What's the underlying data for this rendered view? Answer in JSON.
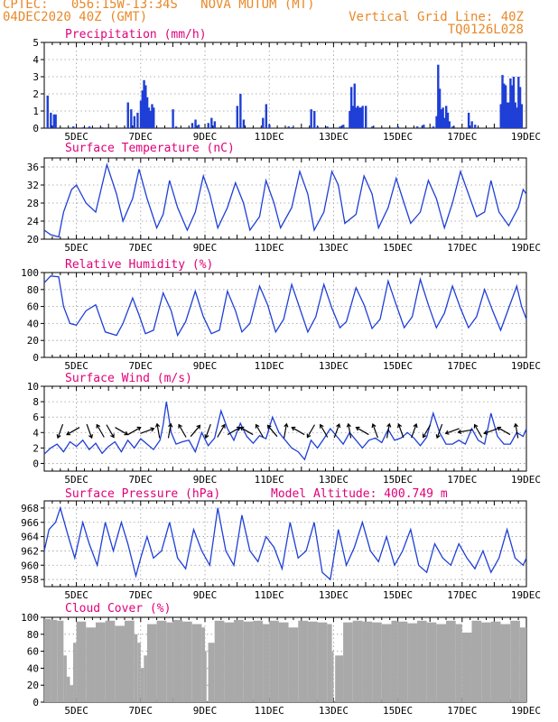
{
  "header": {
    "line1_left": "CPTEC:   056:15W-13:34S   NOVA MUTUM (MT)",
    "line2_left": "04DEC2020 40Z (GMT)",
    "line1_right": "Vertical Grid Line: 40Z",
    "line2_right": "TQ0126L028"
  },
  "colors": {
    "header": "#e8892a",
    "panel_title": "#e0007a",
    "line": "#1f3fd6",
    "bars": "#1f3fd6",
    "cloud": "#a9a9a9",
    "grid": "#9a9a9a"
  },
  "chart_data": [
    {
      "type": "bar",
      "title": "Precipitation (mm/h)",
      "xlim": [
        4.0,
        19.0
      ],
      "ylim": [
        0,
        5
      ],
      "yticks": [
        0,
        1,
        2,
        3,
        4,
        5
      ],
      "xtick_values": [
        5,
        7,
        9,
        11,
        13,
        15,
        17,
        19
      ],
      "xtick_labels": [
        "5DEC",
        "7DEC",
        "9DEC",
        "11DEC",
        "13DEC",
        "15DEC",
        "17DEC",
        "19DEC"
      ],
      "grid": true,
      "x": [
        4.1,
        4.2,
        4.3,
        4.35,
        4.9,
        5.2,
        5.4,
        5.8,
        6.6,
        6.7,
        6.8,
        6.9,
        7.0,
        7.05,
        7.1,
        7.15,
        7.2,
        7.25,
        7.3,
        7.35,
        7.4,
        8.0,
        8.1,
        8.6,
        8.7,
        8.8,
        9.1,
        9.2,
        9.3,
        10.0,
        10.1,
        10.2,
        10.8,
        10.9,
        11.0,
        11.6,
        11.7,
        12.3,
        12.4,
        12.5,
        12.8,
        13.2,
        13.3,
        13.5,
        13.55,
        13.6,
        13.65,
        13.7,
        13.75,
        13.8,
        13.85,
        13.9,
        14.0,
        14.2,
        15.0,
        15.6,
        15.8,
        16.1,
        16.2,
        16.25,
        16.3,
        16.35,
        16.4,
        16.45,
        16.5,
        16.55,
        16.6,
        16.7,
        17.2,
        17.3,
        17.4,
        18.2,
        18.25,
        18.3,
        18.35,
        18.4,
        18.45,
        18.5,
        18.55,
        18.6,
        18.65,
        18.7,
        18.75,
        18.8,
        18.85
      ],
      "values": [
        1.9,
        0.9,
        0.8,
        0.8,
        0.1,
        0.05,
        0.1,
        0.05,
        1.5,
        1.1,
        0.7,
        0.9,
        1.6,
        2.2,
        2.8,
        2.5,
        1.8,
        1.2,
        1.0,
        1.4,
        1.2,
        1.1,
        0.1,
        0.3,
        0.5,
        0.2,
        0.3,
        0.6,
        0.4,
        1.3,
        2.0,
        0.5,
        0.6,
        1.4,
        0.2,
        0.1,
        0.05,
        1.1,
        1.0,
        0.1,
        0.1,
        0.1,
        0.2,
        1.0,
        2.4,
        1.3,
        2.6,
        1.2,
        1.3,
        1.2,
        1.2,
        1.3,
        1.3,
        0.1,
        0.1,
        0.1,
        0.2,
        0.1,
        0.7,
        3.7,
        2.3,
        1.1,
        1.2,
        0.6,
        1.3,
        0.9,
        0.4,
        0.1,
        0.9,
        0.4,
        0.2,
        1.4,
        3.1,
        2.6,
        2.5,
        1.5,
        1.5,
        2.9,
        2.5,
        3.0,
        1.5,
        1.2,
        3.0,
        2.4,
        1.4
      ]
    },
    {
      "type": "line",
      "title": "Surface Temperature (nC)",
      "xlim": [
        4.0,
        19.0
      ],
      "ylim": [
        20,
        38
      ],
      "yticks": [
        20,
        24,
        28,
        32,
        36
      ],
      "xtick_values": [
        5,
        7,
        9,
        11,
        13,
        15,
        17,
        19
      ],
      "xtick_labels": [
        "5DEC",
        "7DEC",
        "9DEC",
        "11DEC",
        "13DEC",
        "15DEC",
        "17DEC",
        "19DEC"
      ],
      "grid": true,
      "x": [
        4.0,
        4.2,
        4.45,
        4.6,
        4.85,
        5.0,
        5.3,
        5.6,
        5.95,
        6.25,
        6.45,
        6.75,
        6.95,
        7.2,
        7.5,
        7.7,
        7.9,
        8.15,
        8.45,
        8.7,
        8.95,
        9.15,
        9.4,
        9.7,
        9.95,
        10.2,
        10.4,
        10.7,
        10.9,
        11.15,
        11.35,
        11.7,
        11.95,
        12.2,
        12.4,
        12.7,
        12.95,
        13.15,
        13.35,
        13.7,
        13.95,
        14.2,
        14.4,
        14.7,
        14.95,
        15.15,
        15.4,
        15.7,
        15.95,
        16.2,
        16.45,
        16.7,
        16.95,
        17.15,
        17.45,
        17.7,
        17.9,
        18.15,
        18.45,
        18.75,
        18.9,
        19.0
      ],
      "values": [
        22,
        21,
        20.5,
        26,
        31,
        32,
        28,
        26,
        36.5,
        30,
        24,
        29,
        35.5,
        29,
        22.5,
        25.5,
        33,
        27,
        22,
        26,
        34,
        30,
        22.5,
        27,
        32.5,
        28,
        22,
        25,
        33,
        28,
        22.5,
        27,
        35,
        30,
        22,
        26,
        35,
        32,
        23.5,
        25.5,
        34,
        30,
        22.5,
        27,
        33.5,
        29,
        23.5,
        26,
        33,
        29,
        22.5,
        28,
        35,
        31,
        25,
        26,
        33,
        26,
        23,
        27,
        31,
        30
      ]
    },
    {
      "type": "line",
      "title": "Relative Humidity (%)",
      "xlim": [
        4.0,
        19.0
      ],
      "ylim": [
        0,
        100
      ],
      "yticks": [
        0,
        20,
        40,
        60,
        80,
        100
      ],
      "xtick_values": [
        5,
        7,
        9,
        11,
        13,
        15,
        17,
        19
      ],
      "xtick_labels": [
        "5DEC",
        "7DEC",
        "9DEC",
        "11DEC",
        "13DEC",
        "15DEC",
        "17DEC",
        "19DEC"
      ],
      "grid": true,
      "x": [
        4.0,
        4.2,
        4.45,
        4.6,
        4.8,
        5.0,
        5.3,
        5.6,
        5.9,
        6.25,
        6.45,
        6.75,
        6.95,
        7.15,
        7.4,
        7.7,
        7.95,
        8.15,
        8.4,
        8.7,
        8.95,
        9.2,
        9.45,
        9.7,
        9.95,
        10.15,
        10.4,
        10.7,
        10.95,
        11.2,
        11.45,
        11.7,
        11.95,
        12.2,
        12.45,
        12.7,
        12.95,
        13.2,
        13.4,
        13.7,
        13.95,
        14.2,
        14.45,
        14.7,
        14.95,
        15.2,
        15.45,
        15.7,
        15.95,
        16.2,
        16.45,
        16.7,
        16.95,
        17.2,
        17.45,
        17.7,
        17.95,
        18.2,
        18.45,
        18.7,
        18.85,
        19.0
      ],
      "values": [
        88,
        96,
        95,
        60,
        40,
        38,
        55,
        62,
        30,
        26,
        40,
        70,
        50,
        28,
        32,
        76,
        55,
        26,
        42,
        78,
        48,
        28,
        32,
        78,
        55,
        30,
        40,
        84,
        62,
        30,
        45,
        86,
        58,
        30,
        48,
        86,
        58,
        35,
        42,
        82,
        62,
        34,
        45,
        90,
        62,
        35,
        48,
        92,
        62,
        35,
        52,
        84,
        58,
        35,
        48,
        80,
        55,
        32,
        58,
        84,
        60,
        45
      ]
    },
    {
      "type": "line",
      "title": "Surface Wind (m/s)",
      "xlim": [
        4.0,
        19.0
      ],
      "ylim": [
        -1,
        10
      ],
      "yticks": [
        0,
        2,
        4,
        6,
        8,
        10
      ],
      "xtick_values": [
        5,
        7,
        9,
        11,
        13,
        15,
        17,
        19
      ],
      "xtick_labels": [
        "5DEC",
        "7DEC",
        "9DEC",
        "11DEC",
        "13DEC",
        "15DEC",
        "17DEC",
        "19DEC"
      ],
      "grid": true,
      "x": [
        4.0,
        4.2,
        4.4,
        4.6,
        4.8,
        5.0,
        5.2,
        5.4,
        5.6,
        5.8,
        6.0,
        6.2,
        6.4,
        6.6,
        6.8,
        7.0,
        7.2,
        7.4,
        7.6,
        7.7,
        7.8,
        7.95,
        8.1,
        8.3,
        8.5,
        8.7,
        8.9,
        9.1,
        9.3,
        9.5,
        9.7,
        9.9,
        10.1,
        10.3,
        10.5,
        10.7,
        10.9,
        11.1,
        11.3,
        11.5,
        11.7,
        11.9,
        12.1,
        12.3,
        12.5,
        12.7,
        12.9,
        13.1,
        13.3,
        13.5,
        13.7,
        13.9,
        14.1,
        14.3,
        14.5,
        14.7,
        14.9,
        15.1,
        15.3,
        15.5,
        15.7,
        15.9,
        16.1,
        16.3,
        16.5,
        16.7,
        16.9,
        17.1,
        17.3,
        17.5,
        17.7,
        17.9,
        18.1,
        18.3,
        18.5,
        18.7,
        18.9,
        19.0
      ],
      "values": [
        1.2,
        2,
        2.5,
        1.5,
        2.8,
        2.2,
        3,
        1.8,
        2.6,
        1.3,
        2.2,
        2.8,
        1.5,
        3,
        2,
        3.2,
        2.5,
        1.8,
        3,
        5,
        8,
        4,
        2.5,
        2.8,
        3,
        1.5,
        4,
        2.3,
        3.3,
        6.8,
        4.5,
        3,
        5.2,
        3.5,
        2.6,
        3.6,
        3.2,
        6,
        4,
        3,
        2,
        1.5,
        0.5,
        3,
        2,
        3.2,
        4.5,
        3.5,
        2.5,
        4,
        3,
        2,
        3,
        3.3,
        2.7,
        4.4,
        3,
        3.3,
        4,
        3.3,
        2.3,
        3.4,
        6.5,
        4,
        2.5,
        2.5,
        3,
        2.5,
        4.5,
        3,
        2.5,
        6.5,
        3.5,
        2.5,
        2.5,
        4,
        3.5,
        4.5
      ]
    },
    {
      "type": "line",
      "title": "Surface Pressure (hPa)",
      "xlim": [
        4.0,
        19.0
      ],
      "ylim": [
        957,
        969
      ],
      "yticks": [
        958,
        960,
        962,
        964,
        966,
        968
      ],
      "xtick_values": [
        5,
        7,
        9,
        11,
        13,
        15,
        17,
        19
      ],
      "xtick_labels": [
        "5DEC",
        "7DEC",
        "9DEC",
        "11DEC",
        "13DEC",
        "15DEC",
        "17DEC",
        "19DEC"
      ],
      "grid": true,
      "x": [
        4.0,
        4.15,
        4.35,
        4.5,
        4.75,
        4.95,
        5.2,
        5.4,
        5.65,
        5.9,
        6.15,
        6.4,
        6.6,
        6.85,
        7.0,
        7.2,
        7.4,
        7.65,
        7.9,
        8.15,
        8.4,
        8.65,
        8.9,
        9.15,
        9.4,
        9.65,
        9.9,
        10.15,
        10.4,
        10.65,
        10.9,
        11.15,
        11.4,
        11.65,
        11.9,
        12.15,
        12.4,
        12.65,
        12.9,
        13.15,
        13.4,
        13.65,
        13.9,
        14.15,
        14.4,
        14.65,
        14.9,
        15.15,
        15.4,
        15.65,
        15.9,
        16.15,
        16.4,
        16.65,
        16.9,
        17.15,
        17.4,
        17.65,
        17.9,
        18.15,
        18.4,
        18.65,
        18.9,
        19.0
      ],
      "values": [
        962,
        965,
        966,
        968,
        964,
        961,
        966,
        963,
        960,
        966,
        962,
        966,
        963,
        958.5,
        961,
        964,
        961,
        962,
        966,
        961,
        959.5,
        965,
        962,
        960,
        968,
        962,
        960,
        967,
        962,
        960.5,
        964,
        962.5,
        959.5,
        966,
        961,
        962,
        966,
        959,
        958,
        965,
        960,
        962.5,
        966,
        962,
        960.5,
        964,
        960,
        962,
        965,
        960,
        959,
        963,
        961,
        960,
        963,
        961,
        959.5,
        962,
        959,
        961,
        965,
        961,
        960,
        961
      ]
    },
    {
      "type": "area",
      "title": "Cloud Cover (%)",
      "xlim": [
        4.0,
        19.0
      ],
      "ylim": [
        0,
        100
      ],
      "yticks": [
        0,
        20,
        40,
        60,
        80,
        100
      ],
      "xtick_values": [
        5,
        7,
        9,
        11,
        13,
        15,
        17,
        19
      ],
      "xtick_labels": [
        "5DEC",
        "7DEC",
        "9DEC",
        "11DEC",
        "13DEC",
        "15DEC",
        "17DEC",
        "19DEC"
      ],
      "grid": true,
      "x": [
        4.0,
        4.2,
        4.4,
        4.6,
        4.7,
        4.8,
        4.9,
        5.0,
        5.3,
        5.6,
        5.9,
        6.2,
        6.5,
        6.8,
        6.9,
        7.0,
        7.1,
        7.2,
        7.5,
        7.8,
        8.0,
        8.3,
        8.6,
        8.9,
        9.0,
        9.05,
        9.1,
        9.3,
        9.6,
        9.9,
        10.2,
        10.5,
        10.8,
        11.0,
        11.3,
        11.6,
        11.9,
        12.2,
        12.5,
        12.8,
        12.95,
        13.0,
        13.05,
        13.3,
        13.6,
        13.9,
        14.2,
        14.5,
        14.8,
        15.0,
        15.3,
        15.6,
        15.9,
        16.2,
        16.5,
        16.8,
        17.0,
        17.3,
        17.6,
        17.9,
        18.2,
        18.5,
        18.8,
        19.0
      ],
      "values": [
        98,
        97,
        96,
        55,
        30,
        20,
        70,
        95,
        88,
        94,
        96,
        90,
        96,
        80,
        70,
        40,
        55,
        92,
        96,
        94,
        97,
        95,
        92,
        88,
        60,
        0,
        70,
        96,
        94,
        97,
        95,
        96,
        92,
        96,
        94,
        88,
        96,
        95,
        94,
        92,
        60,
        0,
        55,
        94,
        96,
        95,
        94,
        92,
        96,
        95,
        93,
        96,
        94,
        92,
        96,
        92,
        82,
        96,
        94,
        95,
        92,
        96,
        88,
        85
      ]
    }
  ],
  "wind_arrows": {
    "x": [
      4.5,
      4.9,
      5.4,
      5.75,
      6.05,
      6.4,
      6.8,
      7.2,
      7.55,
      7.9,
      8.3,
      8.7,
      9.1,
      9.5,
      9.9,
      10.3,
      10.7,
      11.1,
      11.5,
      11.9,
      12.3,
      12.7,
      13.1,
      13.5,
      13.9,
      14.3,
      14.7,
      15.1,
      15.5,
      15.9,
      16.3,
      16.7,
      17.1,
      17.5,
      17.9,
      18.3,
      18.7
    ],
    "direction_deg": [
      200,
      240,
      160,
      330,
      150,
      120,
      60,
      70,
      350,
      10,
      330,
      40,
      200,
      30,
      60,
      300,
      330,
      320,
      10,
      300,
      210,
      330,
      20,
      350,
      300,
      340,
      10,
      340,
      20,
      210,
      200,
      250,
      260,
      330,
      250,
      300,
      350
    ]
  },
  "annotation": "Model Altitude: 400.749 m"
}
